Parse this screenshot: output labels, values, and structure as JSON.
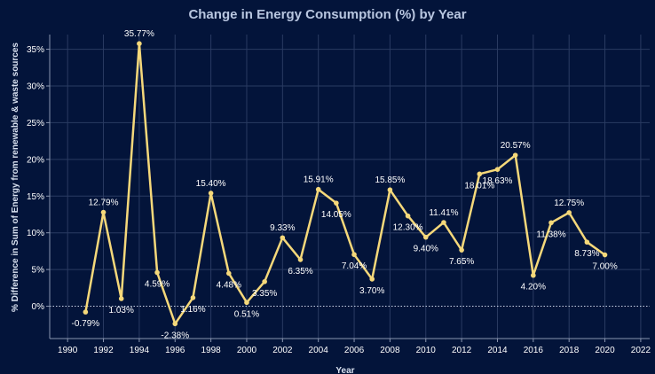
{
  "chart_data": {
    "type": "line",
    "title": "Change in Energy Consumption (%) by Year",
    "xlabel": "Year",
    "ylabel": "% Difference in Sum of Energy from renewable & waste sources",
    "xlim": [
      1989,
      2022.5
    ],
    "ylim": [
      -4.4,
      37
    ],
    "x_ticks": [
      1990,
      1992,
      1994,
      1996,
      1998,
      2000,
      2002,
      2004,
      2006,
      2008,
      2010,
      2012,
      2014,
      2016,
      2018,
      2020,
      2022
    ],
    "y_ticks": [
      0,
      5,
      10,
      15,
      20,
      25,
      30,
      35
    ],
    "y_tick_labels": [
      "0%",
      "5%",
      "10%",
      "15%",
      "20%",
      "25%",
      "30%",
      "35%"
    ],
    "grid": true,
    "zero_line": "dotted",
    "series": [
      {
        "points": [
          {
            "x": 1991,
            "y": -0.79,
            "label": "-0.79%"
          },
          {
            "x": 1992,
            "y": 12.79,
            "label": "12.79%"
          },
          {
            "x": 1993,
            "y": 1.03,
            "label": "1.03%"
          },
          {
            "x": 1994,
            "y": 35.77,
            "label": "35.77%"
          },
          {
            "x": 1995,
            "y": 4.59,
            "label": "4.59%"
          },
          {
            "x": 1996,
            "y": -2.38,
            "label": "-2.38%"
          },
          {
            "x": 1997,
            "y": 1.16,
            "label": "1.16%"
          },
          {
            "x": 1998,
            "y": 15.4,
            "label": "15.40%"
          },
          {
            "x": 1999,
            "y": 4.48,
            "label": "4.48%"
          },
          {
            "x": 2000,
            "y": 0.51,
            "label": "0.51%"
          },
          {
            "x": 2001,
            "y": 3.35,
            "label": "3.35%"
          },
          {
            "x": 2002,
            "y": 9.33,
            "label": "9.33%"
          },
          {
            "x": 2003,
            "y": 6.35,
            "label": "6.35%"
          },
          {
            "x": 2004,
            "y": 15.91,
            "label": "15.91%"
          },
          {
            "x": 2005,
            "y": 14.05,
            "label": "14.05%"
          },
          {
            "x": 2006,
            "y": 7.04,
            "label": "7.04%"
          },
          {
            "x": 2007,
            "y": 3.7,
            "label": "3.70%"
          },
          {
            "x": 2008,
            "y": 15.85,
            "label": "15.85%"
          },
          {
            "x": 2009,
            "y": 12.3,
            "label": "12.30%"
          },
          {
            "x": 2010,
            "y": 9.4,
            "label": "9.40%"
          },
          {
            "x": 2011,
            "y": 11.41,
            "label": "11.41%"
          },
          {
            "x": 2012,
            "y": 7.65,
            "label": "7.65%"
          },
          {
            "x": 2013,
            "y": 18.01,
            "label": "18.01%"
          },
          {
            "x": 2014,
            "y": 18.63,
            "label": "18.63%"
          },
          {
            "x": 2015,
            "y": 20.57,
            "label": "20.57%"
          },
          {
            "x": 2016,
            "y": 4.2,
            "label": "4.20%"
          },
          {
            "x": 2017,
            "y": 11.38,
            "label": "11.38%"
          },
          {
            "x": 2018,
            "y": 12.75,
            "label": "12.75%"
          },
          {
            "x": 2019,
            "y": 8.73,
            "label": "8.73%"
          },
          {
            "x": 2020,
            "y": 7.0,
            "label": "7.00%"
          }
        ]
      }
    ],
    "colors": {
      "background": "#03143a",
      "line": "#f5d87a",
      "grid": "#2a3b62",
      "axis": "#8a96b0"
    }
  }
}
